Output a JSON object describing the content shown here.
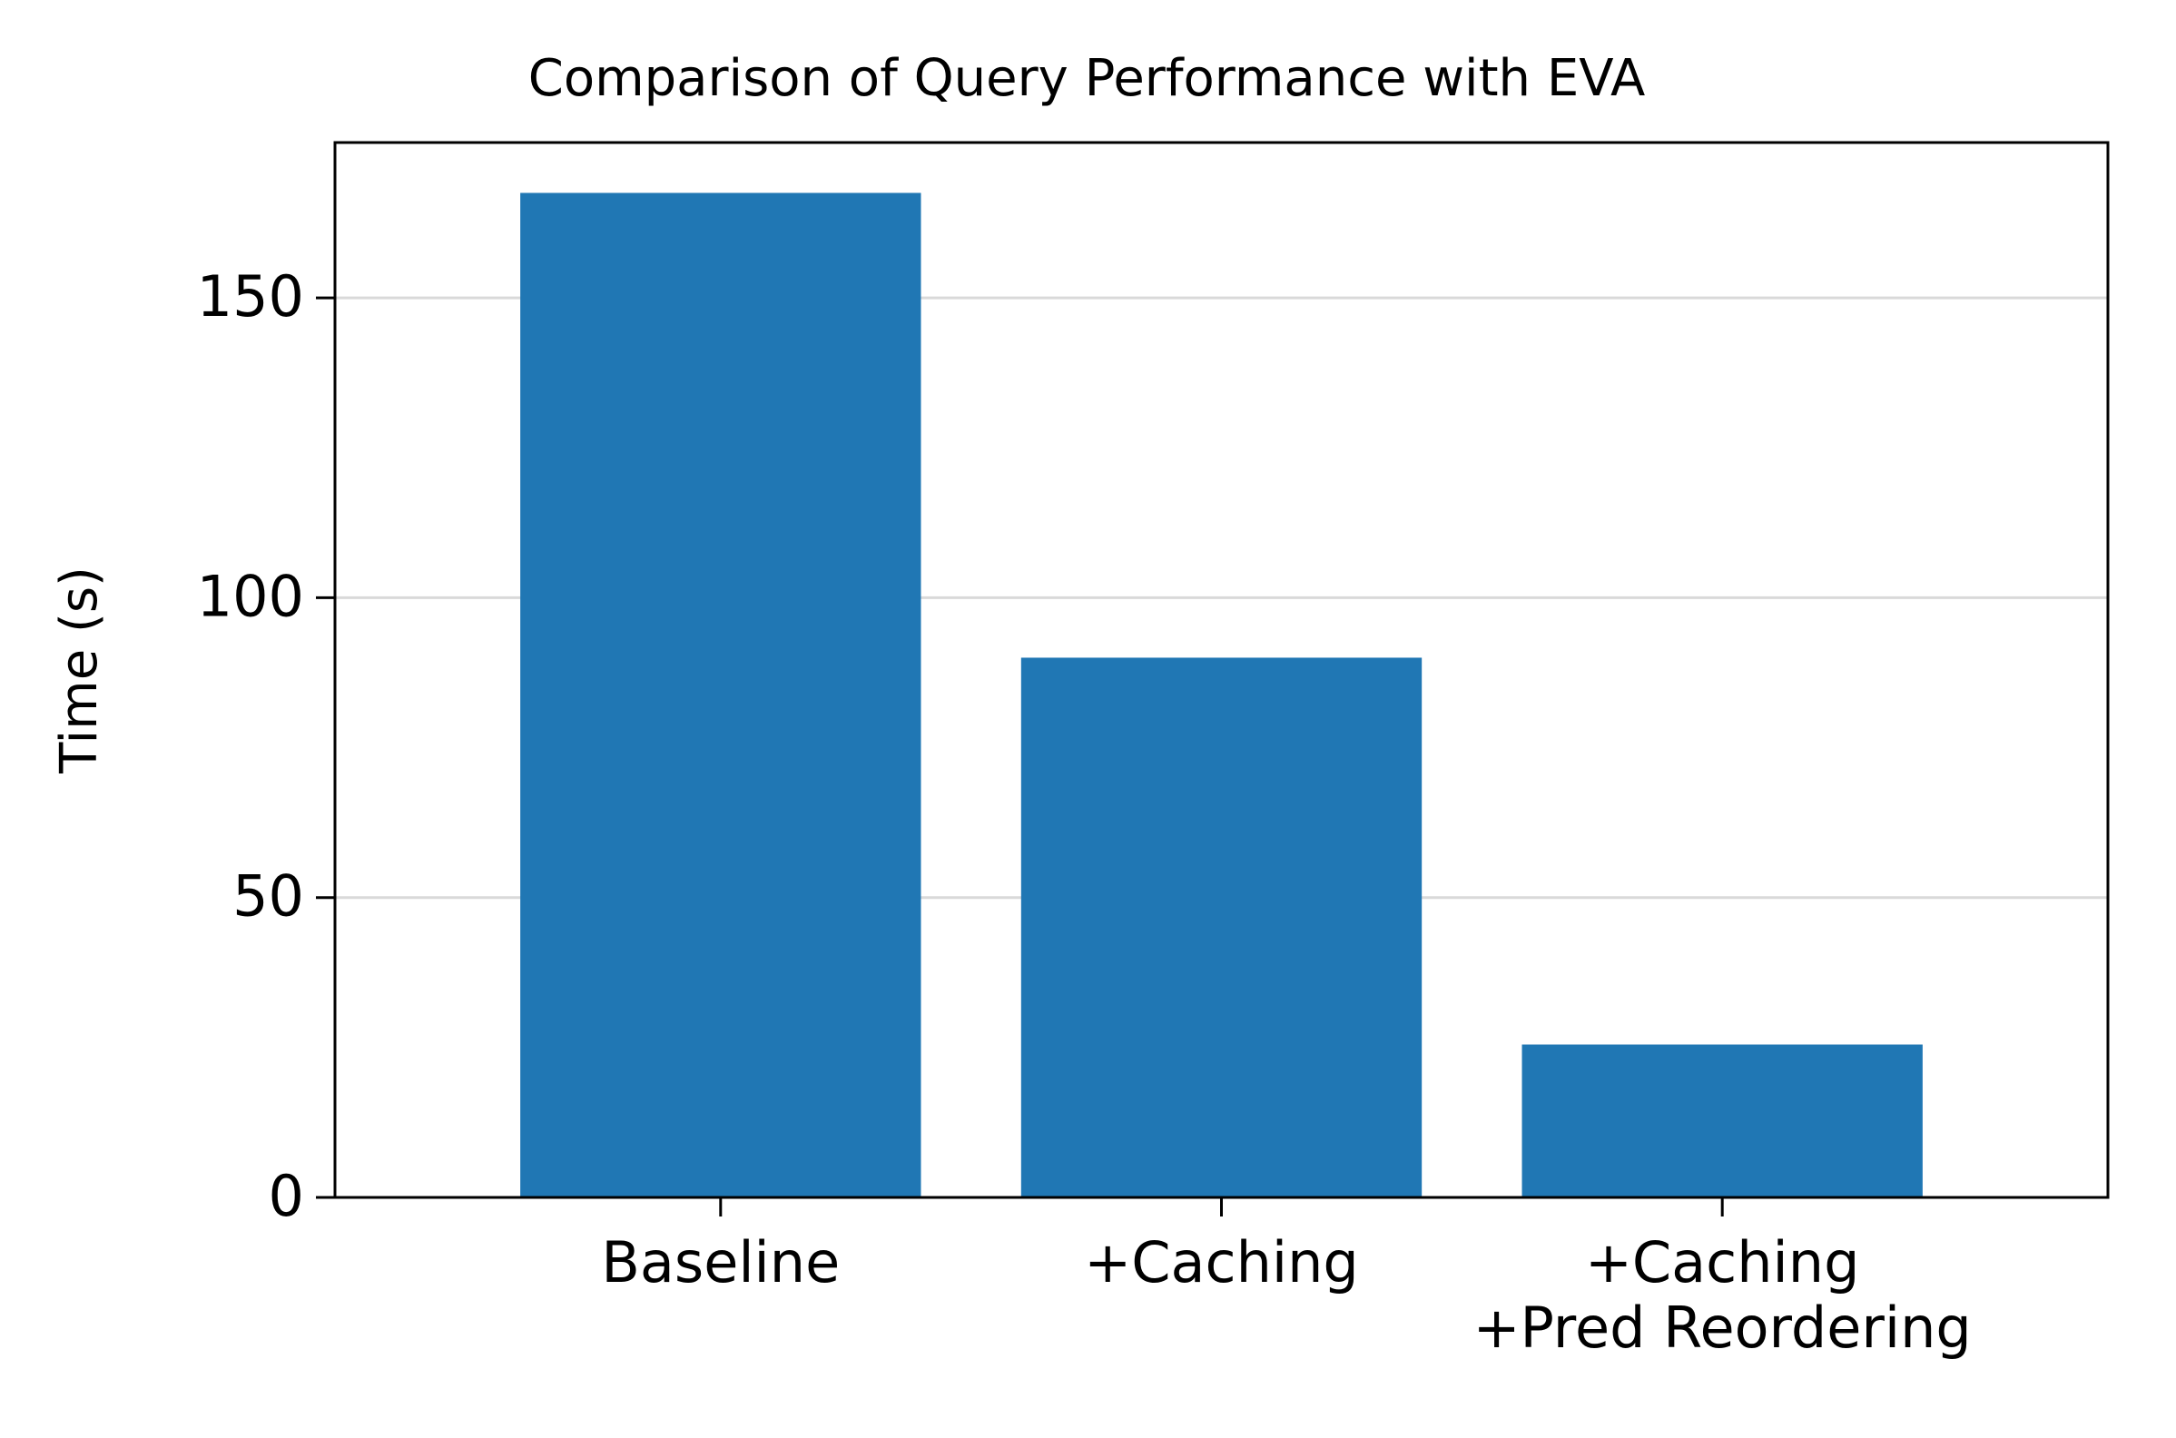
{
  "chart_data": {
    "type": "bar",
    "title": "Comparison of Query Performance with EVA",
    "xlabel": "",
    "ylabel": "Time (s)",
    "categories": [
      [
        "Baseline"
      ],
      [
        "+Caching"
      ],
      [
        "+Caching",
        "+Pred Reordering"
      ]
    ],
    "values": [
      167.5,
      90,
      25.5
    ],
    "ylim": [
      0,
      175.9
    ],
    "yticks": [
      0,
      50,
      100,
      150
    ],
    "grid": "y",
    "legend": "none",
    "colors": {
      "bar": "#2077b4",
      "grid": "#d9d9d9",
      "axis": "#000000"
    }
  }
}
